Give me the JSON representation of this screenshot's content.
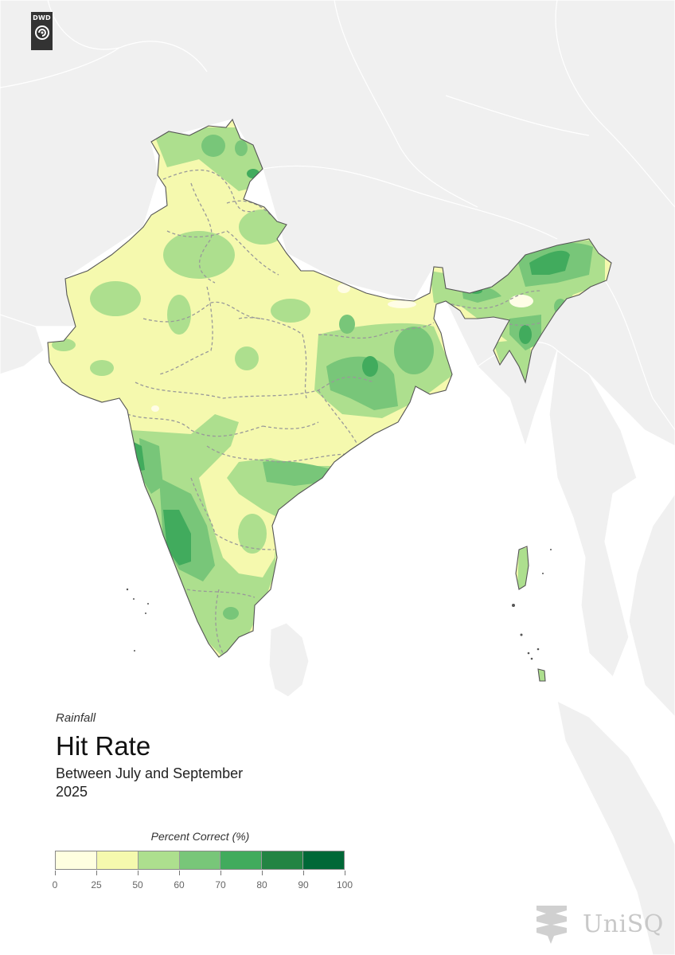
{
  "logo": {
    "text": "DWD"
  },
  "header": {
    "variable": "Rainfall",
    "title": "Hit Rate",
    "period": "Between July and September",
    "year": "2025"
  },
  "legend": {
    "title": "Percent Correct (%)",
    "ticks": [
      "0",
      "25",
      "50",
      "60",
      "70",
      "80",
      "90",
      "100"
    ],
    "colors": [
      "#ffffe0",
      "#f5f9ae",
      "#addf8e",
      "#78c679",
      "#41ab5d",
      "#238443",
      "#006837"
    ]
  },
  "branding": {
    "name": "UniSQ"
  },
  "colors": {
    "ocean": "#ffffff",
    "land": "#f0f0f0",
    "border": "#555555"
  }
}
